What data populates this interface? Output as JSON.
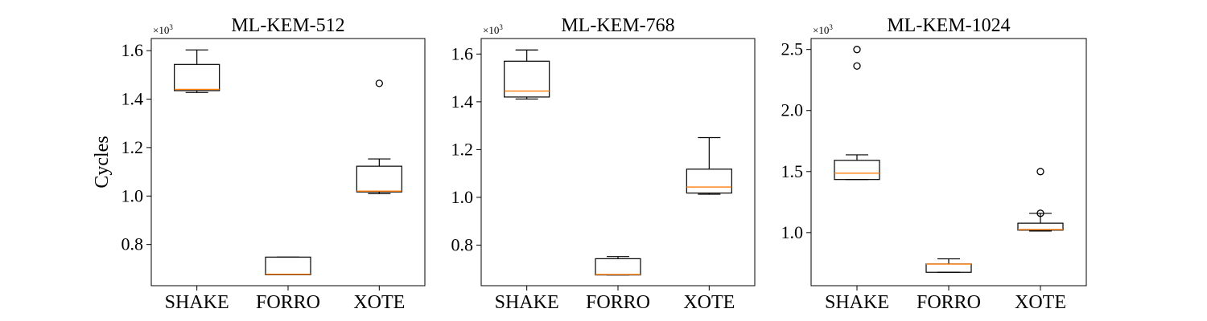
{
  "figure": {
    "ylabel": "Cycles",
    "multiplier_base": "×10",
    "multiplier_exp": "3"
  },
  "colors": {
    "box_edge": "#000000",
    "median": "#ff7f0e",
    "flier": "#000000"
  },
  "chart_data": [
    {
      "type": "box",
      "title": "ML-KEM-512",
      "categories": [
        "SHAKE",
        "FORRO",
        "XOTE"
      ],
      "ylim": [
        0.63,
        1.65
      ],
      "yticks": [
        0.8,
        1.0,
        1.2,
        1.4,
        1.6
      ],
      "ytick_labels": [
        "0.8",
        "1.0",
        "1.2",
        "1.4",
        "1.6"
      ],
      "boxes": [
        {
          "whislo": 1.427,
          "q1": 1.435,
          "med": 1.44,
          "q3": 1.543,
          "whishi": 1.603,
          "fliers": []
        },
        {
          "whislo": 0.675,
          "q1": 0.675,
          "med": 0.677,
          "q3": 0.748,
          "whishi": 0.748,
          "fliers": []
        },
        {
          "whislo": 1.01,
          "q1": 1.017,
          "med": 1.02,
          "q3": 1.123,
          "whishi": 1.153,
          "fliers": [
            1.465
          ]
        }
      ]
    },
    {
      "type": "box",
      "title": "ML-KEM-768",
      "categories": [
        "SHAKE",
        "FORRO",
        "XOTE"
      ],
      "ylim": [
        0.63,
        1.665
      ],
      "yticks": [
        0.8,
        1.0,
        1.2,
        1.4,
        1.6
      ],
      "ytick_labels": [
        "0.8",
        "1.0",
        "1.2",
        "1.4",
        "1.6"
      ],
      "boxes": [
        {
          "whislo": 1.412,
          "q1": 1.42,
          "med": 1.445,
          "q3": 1.57,
          "whishi": 1.617,
          "fliers": []
        },
        {
          "whislo": 0.675,
          "q1": 0.675,
          "med": 0.677,
          "q3": 0.743,
          "whishi": 0.752,
          "fliers": []
        },
        {
          "whislo": 1.013,
          "q1": 1.018,
          "med": 1.043,
          "q3": 1.118,
          "whishi": 1.25,
          "fliers": []
        }
      ]
    },
    {
      "type": "box",
      "title": "ML-KEM-1024",
      "categories": [
        "SHAKE",
        "FORRO",
        "XOTE"
      ],
      "ylim": [
        0.565,
        2.59
      ],
      "yticks": [
        1.0,
        1.5,
        2.0,
        2.5
      ],
      "ytick_labels": [
        "1.0",
        "1.5",
        "2.0",
        "2.5"
      ],
      "boxes": [
        {
          "whislo": 1.435,
          "q1": 1.435,
          "med": 1.487,
          "q3": 1.592,
          "whishi": 1.637,
          "fliers": [
            2.365,
            2.5
          ]
        },
        {
          "whislo": 0.675,
          "q1": 0.675,
          "med": 0.742,
          "q3": 0.743,
          "whishi": 0.785,
          "fliers": []
        },
        {
          "whislo": 1.013,
          "q1": 1.02,
          "med": 1.025,
          "q3": 1.077,
          "whishi": 1.158,
          "fliers": [
            1.158,
            1.5
          ]
        }
      ]
    }
  ]
}
